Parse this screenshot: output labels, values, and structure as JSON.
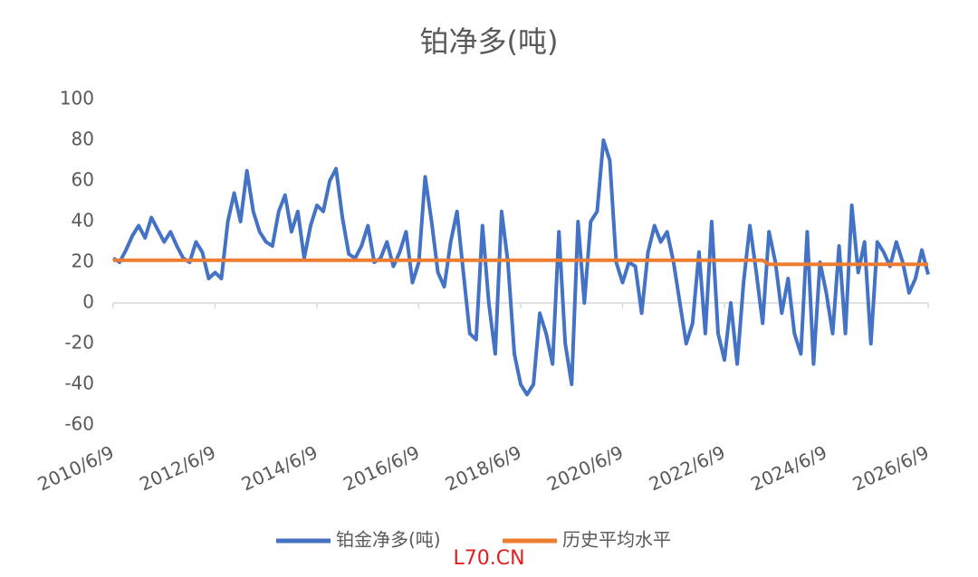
{
  "chart_data": {
    "type": "line",
    "title": "铂净多(吨)",
    "annotation": "L70.CN",
    "categories": [
      "2010/6/9",
      null,
      null,
      null,
      null,
      null,
      null,
      null,
      null,
      null,
      null,
      null,
      null,
      null,
      null,
      null,
      "2012/6/9",
      null,
      null,
      null,
      null,
      null,
      null,
      null,
      null,
      null,
      null,
      null,
      null,
      null,
      null,
      null,
      "2014/6/9",
      null,
      null,
      null,
      null,
      null,
      null,
      null,
      null,
      null,
      null,
      null,
      null,
      null,
      null,
      null,
      "2016/6/9",
      null,
      null,
      null,
      null,
      null,
      null,
      null,
      null,
      null,
      null,
      null,
      null,
      null,
      null,
      null,
      "2018/6/9",
      null,
      null,
      null,
      null,
      null,
      null,
      null,
      null,
      null,
      null,
      null,
      null,
      null,
      null,
      null,
      "2020/6/9",
      null,
      null,
      null,
      null,
      null,
      null,
      null,
      null,
      null,
      null,
      null,
      null,
      null,
      null,
      null,
      "2022/6/9",
      null,
      null,
      null,
      null,
      null,
      null,
      null,
      null,
      null,
      null,
      null,
      null,
      null,
      null,
      null,
      "2024/6/9",
      null,
      null,
      null,
      null,
      null,
      null,
      null,
      null,
      null,
      null,
      null,
      null,
      null,
      null,
      null,
      "2026/6/9"
    ],
    "series": [
      {
        "name": "铂金净多(吨)",
        "color": "#4472c4",
        "values": [
          22,
          20,
          26,
          33,
          38,
          32,
          42,
          36,
          30,
          35,
          28,
          22,
          20,
          30,
          25,
          12,
          15,
          12,
          40,
          54,
          40,
          65,
          45,
          35,
          30,
          28,
          45,
          53,
          35,
          45,
          22,
          38,
          48,
          45,
          60,
          66,
          42,
          24,
          22,
          28,
          38,
          20,
          22,
          30,
          18,
          25,
          35,
          10,
          20,
          62,
          40,
          15,
          8,
          30,
          45,
          15,
          -15,
          -18,
          38,
          0,
          -25,
          45,
          20,
          -25,
          -40,
          -45,
          -40,
          -5,
          -15,
          -30,
          35,
          -20,
          -40,
          40,
          0,
          40,
          45,
          80,
          70,
          20,
          10,
          20,
          18,
          -5,
          25,
          38,
          30,
          35,
          20,
          0,
          -20,
          -10,
          25,
          -15,
          40,
          -15,
          -28,
          0,
          -30,
          10,
          38,
          15,
          -10,
          35,
          20,
          -5,
          12,
          -15,
          -25,
          35,
          -30,
          20,
          5,
          -15,
          28,
          -15,
          48,
          15,
          30,
          -20,
          30,
          25,
          18,
          30,
          20,
          5,
          12,
          26,
          14
        ]
      },
      {
        "name": "历史平均水平",
        "color": "#ed7d31",
        "values": [
          21,
          21,
          21,
          21,
          21,
          21,
          21,
          21,
          21,
          21,
          21,
          21,
          21,
          21,
          21,
          21,
          21,
          21,
          21,
          21,
          21,
          21,
          21,
          21,
          21,
          21,
          21,
          21,
          21,
          21,
          21,
          21,
          21,
          21,
          21,
          21,
          21,
          21,
          21,
          21,
          21,
          21,
          21,
          21,
          21,
          21,
          21,
          21,
          21,
          21,
          21,
          21,
          21,
          21,
          21,
          21,
          21,
          21,
          21,
          21,
          21,
          21,
          21,
          21,
          21,
          21,
          21,
          21,
          21,
          21,
          21,
          21,
          21,
          21,
          21,
          21,
          21,
          21,
          21,
          21,
          21,
          21,
          21,
          21,
          21,
          21,
          21,
          21,
          21,
          21,
          21,
          21,
          21,
          21,
          21,
          21,
          21,
          21,
          21,
          21,
          21,
          21,
          21,
          19,
          19,
          19,
          19,
          19,
          19,
          19,
          19,
          19,
          19,
          19,
          19,
          19,
          19,
          19,
          19,
          19,
          19,
          19,
          19,
          19,
          19,
          19,
          19,
          19,
          19
        ]
      }
    ],
    "ylim": [
      -60,
      100
    ],
    "yticks": [
      -60,
      -40,
      -20,
      0,
      20,
      40,
      60,
      80,
      100
    ],
    "grid": false
  }
}
